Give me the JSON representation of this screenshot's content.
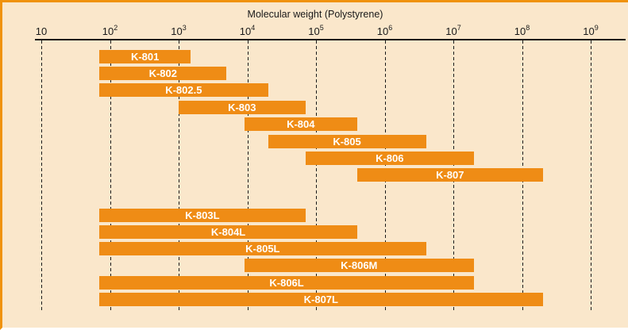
{
  "frame": {
    "background": "#FAE7CB",
    "top_border_color": "#F0920C",
    "left_border_color": "#F0920C",
    "bottom_border_color": "#FFFFFF"
  },
  "chart_data": {
    "type": "bar",
    "subtype": "horizontal-range-bars-log-x",
    "title": "Molecular weight (Polystyrene)",
    "x_scale": "log10",
    "xlim": [
      10,
      1000000000
    ],
    "x_ticks": [
      {
        "base": "10",
        "exp": ""
      },
      {
        "base": "10",
        "exp": "2"
      },
      {
        "base": "10",
        "exp": "3"
      },
      {
        "base": "10",
        "exp": "4"
      },
      {
        "base": "10",
        "exp": "5"
      },
      {
        "base": "10",
        "exp": "6"
      },
      {
        "base": "10",
        "exp": "7"
      },
      {
        "base": "10",
        "exp": "8"
      },
      {
        "base": "10",
        "exp": "9"
      }
    ],
    "grid": "vertical-dashed-per-decade",
    "legend": "none",
    "bar_color": "#EF8C15",
    "bar_label_color": "#FFFFFF",
    "series": [
      {
        "name": "K-801",
        "group": 1,
        "mw_min": 70,
        "mw_max": 1500
      },
      {
        "name": "K-802",
        "group": 1,
        "mw_min": 70,
        "mw_max": 5000
      },
      {
        "name": "K-802.5",
        "group": 1,
        "mw_min": 70,
        "mw_max": 20000
      },
      {
        "name": "K-803",
        "group": 1,
        "mw_min": 1000,
        "mw_max": 70000
      },
      {
        "name": "K-804",
        "group": 1,
        "mw_min": 9000,
        "mw_max": 400000
      },
      {
        "name": "K-805",
        "group": 1,
        "mw_min": 20000,
        "mw_max": 4000000
      },
      {
        "name": "K-806",
        "group": 1,
        "mw_min": 70000,
        "mw_max": 20000000
      },
      {
        "name": "K-807",
        "group": 1,
        "mw_min": 400000,
        "mw_max": 200000000
      },
      {
        "name": "K-803L",
        "group": 2,
        "mw_min": 70,
        "mw_max": 70000
      },
      {
        "name": "K-804L",
        "group": 2,
        "mw_min": 70,
        "mw_max": 400000
      },
      {
        "name": "K-805L",
        "group": 2,
        "mw_min": 70,
        "mw_max": 4000000
      },
      {
        "name": "K-806M",
        "group": 2,
        "mw_min": 9000,
        "mw_max": 20000000
      },
      {
        "name": "K-806L",
        "group": 2,
        "mw_min": 70,
        "mw_max": 20000000
      },
      {
        "name": "K-807L",
        "group": 2,
        "mw_min": 70,
        "mw_max": 200000000
      }
    ]
  }
}
